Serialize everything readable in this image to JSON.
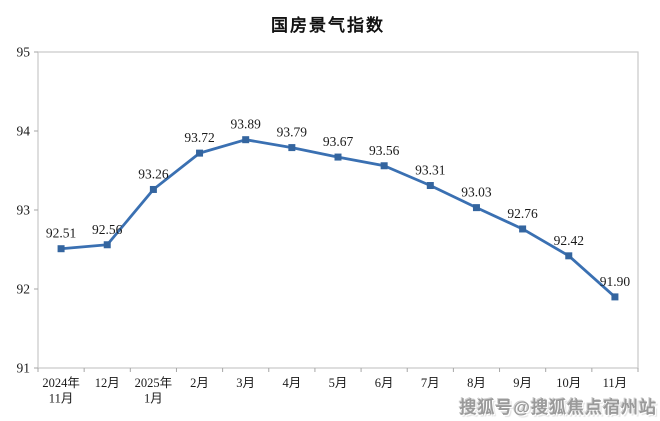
{
  "chart": {
    "title": "国房景气指数"
  },
  "watermark": {
    "text": "搜狐号@搜狐焦点宿州站"
  },
  "chart_data": {
    "type": "line",
    "title": "国房景气指数",
    "categories": [
      "2024年\n11月",
      "12月",
      "2025年\n1月",
      "2月",
      "3月",
      "4月",
      "5月",
      "6月",
      "7月",
      "8月",
      "9月",
      "10月",
      "11月"
    ],
    "values": [
      92.51,
      92.56,
      93.26,
      93.72,
      93.89,
      93.79,
      93.67,
      93.56,
      93.31,
      93.03,
      92.76,
      92.42,
      91.9
    ],
    "value_labels": [
      "92.51",
      "92.56",
      "93.26",
      "93.72",
      "93.89",
      "93.79",
      "93.67",
      "93.56",
      "93.31",
      "93.03",
      "92.76",
      "92.42",
      "91.90"
    ],
    "xlabel": "",
    "ylabel": "",
    "ylim": [
      91,
      95
    ],
    "y_ticks": [
      "95",
      "94",
      "93",
      "92",
      "91"
    ],
    "grid": false,
    "legend": "none",
    "marker": "square",
    "colors": {
      "line": "#3a70b2",
      "marker": "#34659f",
      "axis_border": "#c9c9c9",
      "tick": "#a6a6a6",
      "text": "#1a1a1a",
      "title": "#111111",
      "watermark": "#9a9a9a"
    }
  }
}
